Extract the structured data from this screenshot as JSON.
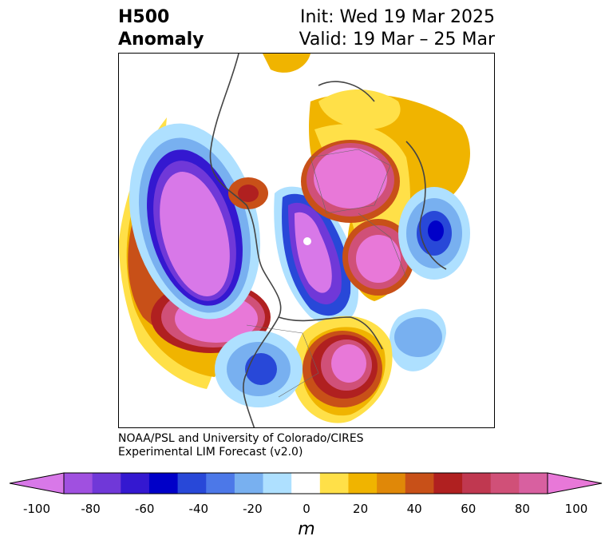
{
  "title": {
    "left_line1": "H500",
    "left_line2": "Anomaly",
    "right_line1": "Init: Wed 19 Mar 2025",
    "right_line2": "Valid: 19 Mar – 25 Mar"
  },
  "credit": {
    "line1": "NOAA/PSL and University of Colorado/CIRES",
    "line2": "Experimental LIM Forecast (v2.0)"
  },
  "colorbar": {
    "unit": "m",
    "ticks": [
      "-100",
      "-80",
      "-60",
      "-40",
      "-20",
      "0",
      "20",
      "40",
      "60",
      "80",
      "100"
    ],
    "colors": [
      "#d878e8",
      "#a050e0",
      "#7038d8",
      "#3418d0",
      "#0000c8",
      "#2848d8",
      "#4c78e8",
      "#78b0f0",
      "#aee0ff",
      "#ffffff",
      "#ffe048",
      "#f0b400",
      "#e08808",
      "#c85018",
      "#b02020",
      "#c03850",
      "#d05078",
      "#d860a0",
      "#e878d8"
    ]
  },
  "map": {
    "projection": "north-polar-stereographic",
    "variable": "500 hPa geopotential height anomaly",
    "features": [
      {
        "name": "positive-anomaly-eastern-north-america",
        "sign": "positive",
        "peak_m": 95
      },
      {
        "name": "positive-anomaly-eastern-pacific",
        "sign": "positive",
        "peak_m": 100
      },
      {
        "name": "positive-anomaly-western-russia",
        "sign": "positive",
        "peak_m": 100
      },
      {
        "name": "positive-anomaly-north-atlantic",
        "sign": "positive",
        "peak_m": 90
      },
      {
        "name": "positive-anomaly-siberia-north",
        "sign": "positive",
        "peak_m": 30
      },
      {
        "name": "negative-anomaly-north-pacific",
        "sign": "negative",
        "peak_m": -100
      },
      {
        "name": "negative-anomaly-arctic-greenland",
        "sign": "negative",
        "peak_m": -100
      },
      {
        "name": "negative-anomaly-mediterranean",
        "sign": "negative",
        "peak_m": -60
      },
      {
        "name": "negative-anomaly-southwest-us",
        "sign": "negative",
        "peak_m": -50
      },
      {
        "name": "negative-anomaly-mid-atlantic",
        "sign": "negative",
        "peak_m": -30
      }
    ]
  }
}
